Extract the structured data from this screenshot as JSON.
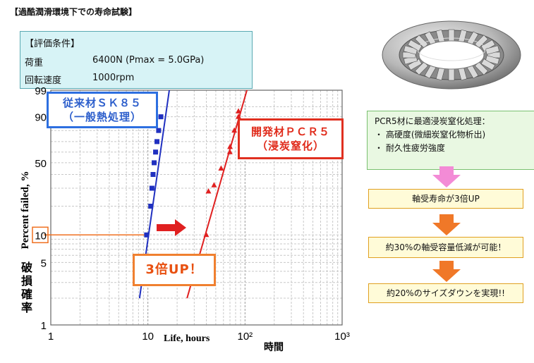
{
  "page_title": "【過酷潤滑環境下での寿命試験】",
  "conditions": {
    "heading": "【評価条件】",
    "rows": [
      {
        "label": "荷重",
        "value": "6400N (Pmax = 5.0GPa)"
      },
      {
        "label": "回転速度",
        "value": "1000rpm"
      }
    ]
  },
  "callouts": {
    "sk85_line1": "従来材ＳＫ８５",
    "sk85_line2": "（一般熱処理）",
    "pcr5_line1": "開発材ＰＣＲ５",
    "pcr5_line2": "（浸炭窒化）",
    "improvement": "3倍UP！"
  },
  "process_box": {
    "title": "PCR5材に最適浸炭窒化処理：",
    "items": [
      "・ 高硬度(微細炭窒化物析出)",
      "・ 耐久性疲労強度"
    ]
  },
  "flow_steps": [
    "軸受寿命が3倍UP",
    "約30%の軸受容量低減が可能！",
    "約20%のサイズダウンを実現!!"
  ],
  "colors": {
    "sk85": "#2030c0",
    "pcr5": "#e02020",
    "highlight": "#f07020",
    "arrow_pink": "#f38bd6",
    "arrow_orange": "#f07828"
  },
  "chart_data": {
    "type": "scatter",
    "x_scale": "log",
    "y_scale": "weibull",
    "xlim": [
      1,
      1000
    ],
    "ylim": [
      1,
      99
    ],
    "x_ticks": [
      "1",
      "10",
      "10²",
      "10³"
    ],
    "y_ticks": [
      "1",
      "5",
      "10",
      "50",
      "90",
      "99"
    ],
    "xlabel": "Life, hours",
    "xlabel_jp": "時間",
    "ylabel": "Percent failed, %",
    "ylabel_jp": "破損確率",
    "highlight_y": 10,
    "series": [
      {
        "name": "従来材ＳＫ８５",
        "marker": "square",
        "points": [
          [
            9.7,
            10
          ],
          [
            10.7,
            20
          ],
          [
            11.0,
            30
          ],
          [
            11.3,
            40
          ],
          [
            11.6,
            50
          ],
          [
            12.0,
            60
          ],
          [
            12.4,
            70
          ],
          [
            12.9,
            80
          ],
          [
            13.6,
            90
          ]
        ],
        "fit": [
          [
            8.2,
            2
          ],
          [
            16.6,
            99
          ]
        ]
      },
      {
        "name": "開発材ＰＣＲ５",
        "marker": "triangle",
        "points": [
          [
            39.9,
            10
          ],
          [
            42.0,
            28
          ],
          [
            48.0,
            32
          ],
          [
            56.7,
            45
          ],
          [
            69.8,
            60
          ],
          [
            70.1,
            65
          ],
          [
            77.6,
            80
          ],
          [
            85.6,
            90
          ],
          [
            85.6,
            93
          ]
        ],
        "fit": [
          [
            25.3,
            2
          ],
          [
            104.6,
            99
          ]
        ]
      }
    ],
    "annotations": [
      "3倍UP！"
    ]
  }
}
